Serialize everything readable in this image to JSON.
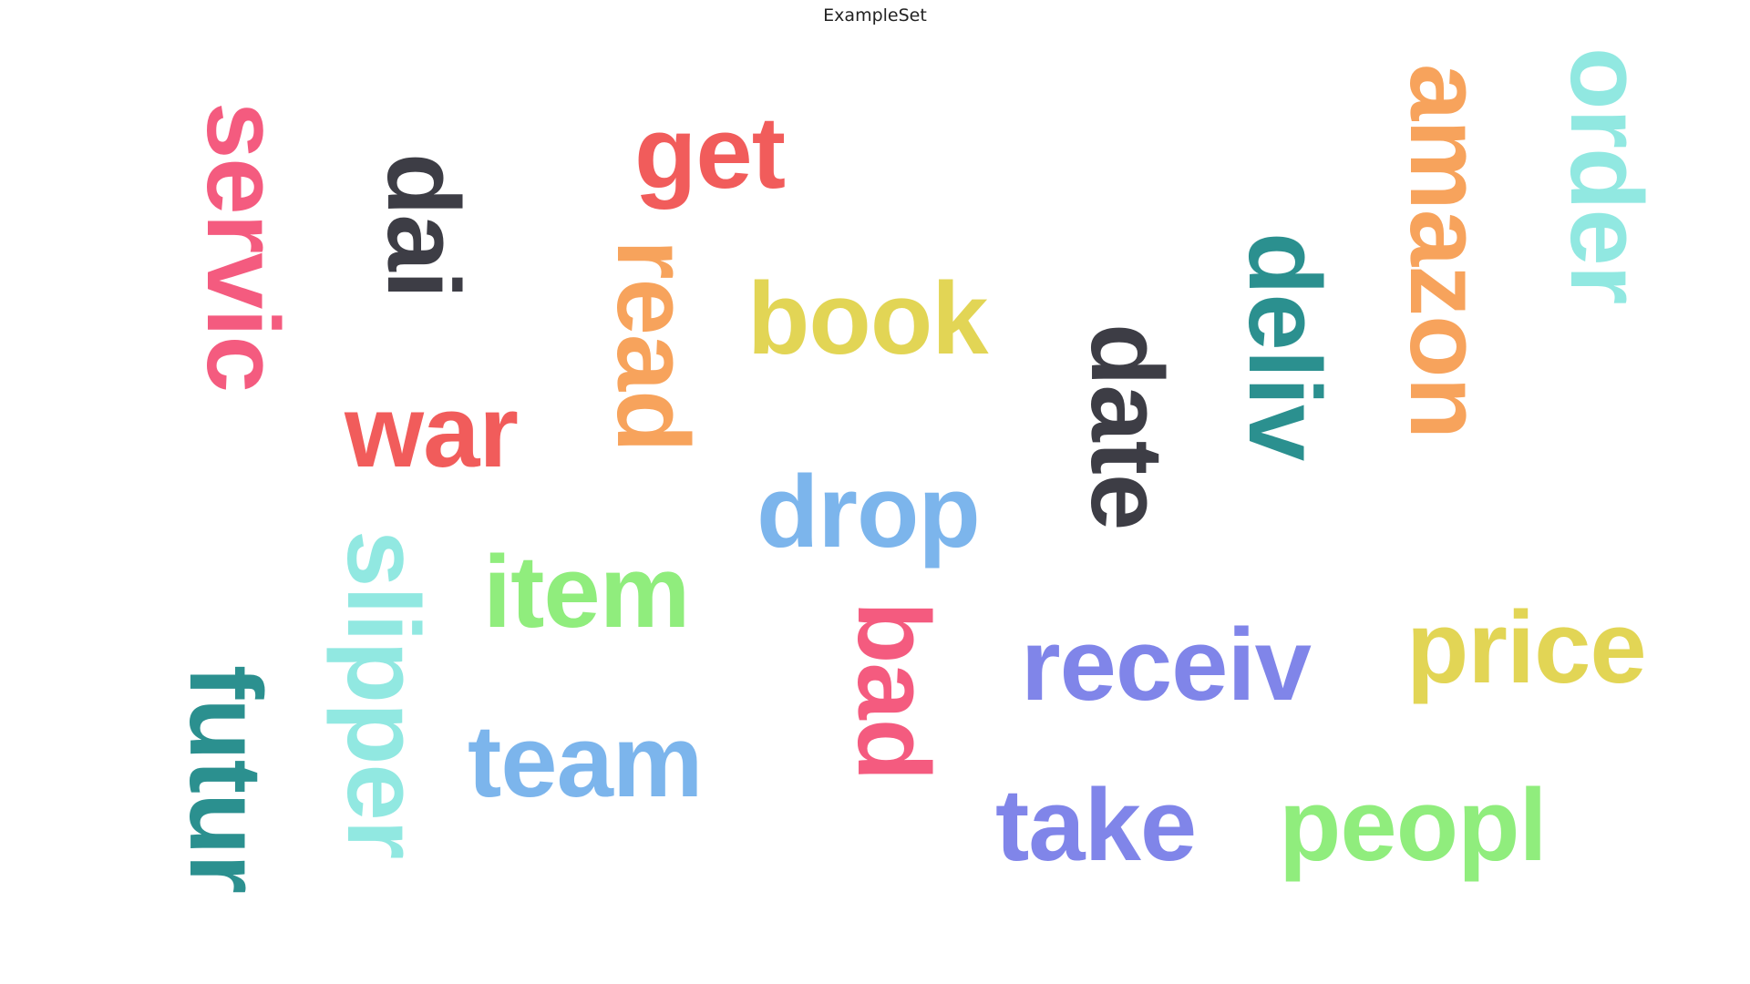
{
  "chart_data": {
    "type": "wordcloud",
    "title": "ExampleSet",
    "words": [
      {
        "text": "servic",
        "color": "#f45b7f",
        "orientation": "vertical"
      },
      {
        "text": "dai",
        "color": "#3d3d45",
        "orientation": "vertical"
      },
      {
        "text": "get",
        "color": "#f15c5b",
        "orientation": "horizontal"
      },
      {
        "text": "read",
        "color": "#f7a35c",
        "orientation": "vertical"
      },
      {
        "text": "book",
        "color": "#e2d555",
        "orientation": "horizontal"
      },
      {
        "text": "war",
        "color": "#f15c5b",
        "orientation": "horizontal"
      },
      {
        "text": "date",
        "color": "#3d3d45",
        "orientation": "vertical"
      },
      {
        "text": "deliv",
        "color": "#2b908f",
        "orientation": "vertical"
      },
      {
        "text": "amazon",
        "color": "#f7a35c",
        "orientation": "vertical"
      },
      {
        "text": "order",
        "color": "#91e8e1",
        "orientation": "vertical"
      },
      {
        "text": "drop",
        "color": "#7cb5ec",
        "orientation": "horizontal"
      },
      {
        "text": "slipper",
        "color": "#91e8e1",
        "orientation": "vertical"
      },
      {
        "text": "item",
        "color": "#90ed7d",
        "orientation": "horizontal"
      },
      {
        "text": "bad",
        "color": "#f45b7f",
        "orientation": "vertical"
      },
      {
        "text": "receiv",
        "color": "#8085e9",
        "orientation": "horizontal"
      },
      {
        "text": "price",
        "color": "#e2d555",
        "orientation": "horizontal"
      },
      {
        "text": "futur",
        "color": "#2b908f",
        "orientation": "vertical"
      },
      {
        "text": "team",
        "color": "#7cb5ec",
        "orientation": "horizontal"
      },
      {
        "text": "take",
        "color": "#8085e9",
        "orientation": "horizontal"
      },
      {
        "text": "peopl",
        "color": "#90ed7d",
        "orientation": "horizontal"
      }
    ]
  }
}
